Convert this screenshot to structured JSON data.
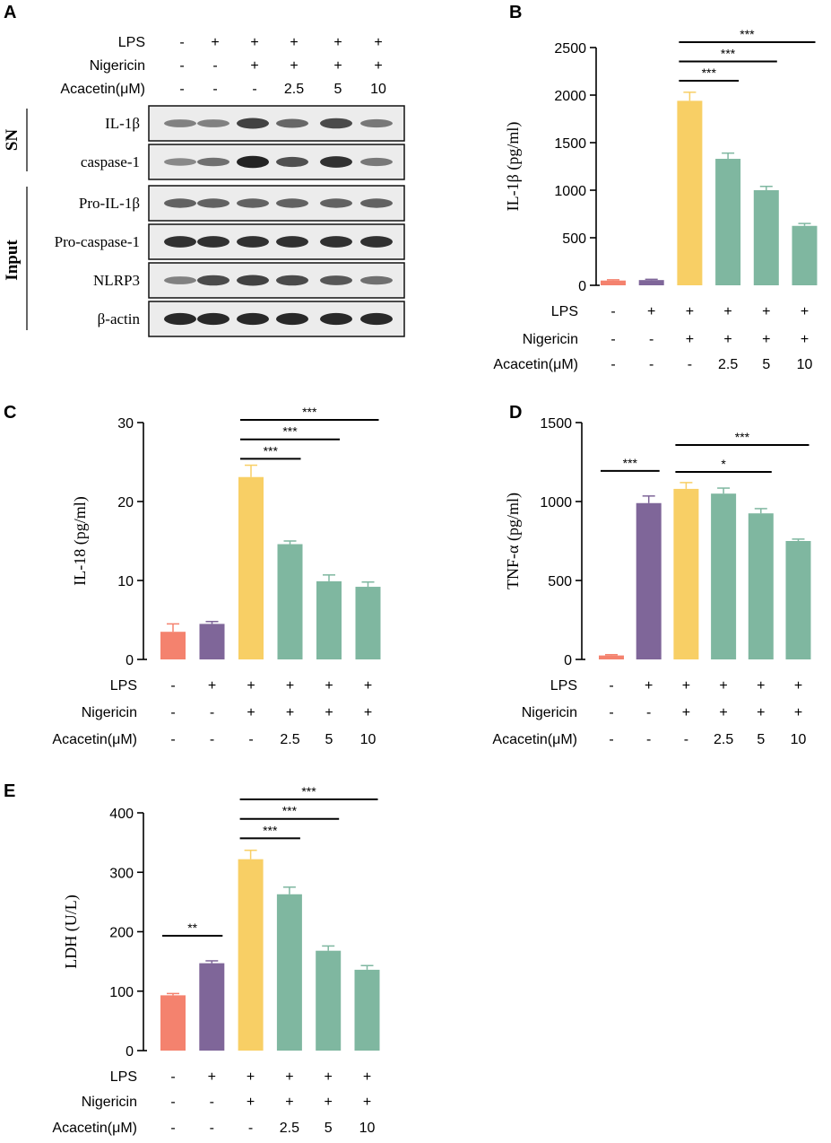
{
  "colors": {
    "control": "#F4826E",
    "lps": "#7F6699",
    "model": "#F8CF65",
    "acacetin": "#7FB7A0",
    "blot_bg": "#ececec",
    "band": "#1a1a1a"
  },
  "conditions": {
    "labels": [
      "LPS",
      "Nigericin",
      "Acacetin(μM)"
    ],
    "rows": [
      [
        "-",
        "+",
        "+",
        "+",
        "+",
        "+"
      ],
      [
        "-",
        "-",
        "+",
        "+",
        "+",
        "+"
      ],
      [
        "-",
        "-",
        "-",
        "2.5",
        "5",
        "10"
      ]
    ]
  },
  "blot": {
    "letter": "A",
    "group_sn": "SN",
    "group_input": "Input",
    "rows": [
      {
        "label": "IL-1β",
        "intensities": [
          0.35,
          0.35,
          0.75,
          0.5,
          0.7,
          0.4
        ]
      },
      {
        "label": "caspase-1",
        "intensities": [
          0.3,
          0.45,
          0.95,
          0.65,
          0.85,
          0.4
        ]
      },
      {
        "label": "Pro-IL-1β",
        "intensities": [
          0.55,
          0.55,
          0.55,
          0.55,
          0.55,
          0.55
        ]
      },
      {
        "label": "Pro-caspase-1",
        "intensities": [
          0.85,
          0.85,
          0.85,
          0.85,
          0.85,
          0.85
        ]
      },
      {
        "label": "NLRP3",
        "intensities": [
          0.35,
          0.7,
          0.75,
          0.7,
          0.6,
          0.45
        ]
      },
      {
        "label": "β-actin",
        "intensities": [
          0.9,
          0.9,
          0.9,
          0.9,
          0.9,
          0.9
        ]
      }
    ]
  },
  "chart_data": [
    {
      "letter": "B",
      "type": "bar",
      "title": "",
      "ylabel": "IL-1β (pg/ml)",
      "ylim": [
        0,
        2500
      ],
      "yticks": [
        0,
        500,
        1000,
        1500,
        2000,
        2500
      ],
      "values": [
        50,
        55,
        1940,
        1330,
        1000,
        625
      ],
      "errors": [
        8,
        8,
        90,
        60,
        40,
        25
      ],
      "significance": [
        {
          "from": 2,
          "to": 3,
          "label": "***"
        },
        {
          "from": 2,
          "to": 4,
          "label": "***"
        },
        {
          "from": 2,
          "to": 5,
          "label": "***"
        }
      ]
    },
    {
      "letter": "C",
      "type": "bar",
      "title": "",
      "ylabel": "IL-18 (pg/ml)",
      "ylim": [
        0,
        30
      ],
      "yticks": [
        0,
        10,
        20,
        30
      ],
      "values": [
        3.5,
        4.5,
        23.1,
        14.6,
        9.9,
        9.2
      ],
      "errors": [
        1.0,
        0.3,
        1.5,
        0.4,
        0.8,
        0.6
      ],
      "significance": [
        {
          "from": 2,
          "to": 3,
          "label": "***"
        },
        {
          "from": 2,
          "to": 4,
          "label": "***"
        },
        {
          "from": 2,
          "to": 5,
          "label": "***"
        }
      ]
    },
    {
      "letter": "D",
      "type": "bar",
      "title": "",
      "ylabel": "TNF-α (pg/ml)",
      "ylim": [
        0,
        1500
      ],
      "yticks": [
        0,
        500,
        1000,
        1500
      ],
      "values": [
        25,
        990,
        1080,
        1050,
        925,
        750
      ],
      "errors": [
        5,
        45,
        40,
        35,
        30,
        12
      ],
      "significance": [
        {
          "from": 0,
          "to": 1,
          "label": "***"
        },
        {
          "from": 2,
          "to": 4,
          "label": "*"
        },
        {
          "from": 2,
          "to": 5,
          "label": "***"
        }
      ]
    },
    {
      "letter": "E",
      "type": "bar",
      "title": "",
      "ylabel": "LDH (U/L)",
      "ylim": [
        0,
        400
      ],
      "yticks": [
        0,
        100,
        200,
        300,
        400
      ],
      "values": [
        93,
        147,
        322,
        263,
        168,
        136
      ],
      "errors": [
        3,
        4,
        15,
        12,
        8,
        7
      ],
      "significance": [
        {
          "from": 0,
          "to": 1,
          "label": "**"
        },
        {
          "from": 2,
          "to": 3,
          "label": "***"
        },
        {
          "from": 2,
          "to": 4,
          "label": "***"
        },
        {
          "from": 2,
          "to": 5,
          "label": "***"
        }
      ]
    }
  ]
}
